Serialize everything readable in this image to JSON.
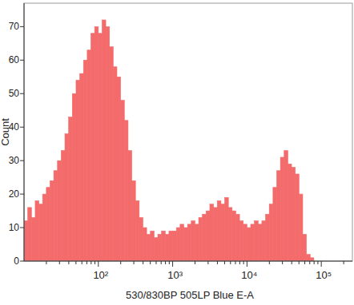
{
  "chart_data": {
    "type": "histogram",
    "x_label": "530/830BP 505LP Blue E-A",
    "y_label": "Count",
    "bins": [
      10,
      11.22,
      12.59,
      14.13,
      15.85,
      17.78,
      19.95,
      22.39,
      25.12,
      28.18,
      31.62,
      35.48,
      39.81,
      44.67,
      50.12,
      56.23,
      63.1,
      70.79,
      79.43,
      89.13,
      100,
      112.2,
      125.9,
      141.3,
      158.5,
      177.8,
      199.5,
      223.9,
      251.2,
      281.8,
      316.2,
      354.8,
      398.1,
      446.7,
      501.2,
      562.3,
      631,
      707.9,
      794.3,
      891.3,
      1000,
      1122,
      1259,
      1413,
      1585,
      1778,
      1995,
      2239,
      2512,
      2818,
      3162,
      3548,
      3981,
      4467,
      5012,
      5623,
      6310,
      7079,
      7943,
      8913,
      10000,
      11220,
      12590,
      14130,
      15850,
      17780,
      19950,
      22390,
      25120,
      28180,
      31620,
      35480,
      39810,
      44670,
      50120,
      56230,
      63100,
      70790,
      79430,
      89130,
      100000
    ],
    "counts": [
      12,
      16,
      13,
      18,
      17,
      20,
      22,
      24,
      27,
      30,
      33,
      38,
      43,
      50,
      54,
      56,
      60,
      63,
      68,
      70,
      68,
      72,
      70,
      64,
      58,
      55,
      48,
      42,
      33,
      24,
      18,
      13,
      10,
      8,
      9,
      7,
      8,
      9,
      8,
      9,
      9,
      10,
      11,
      10,
      11,
      12,
      11,
      13,
      14,
      15,
      17,
      16,
      18,
      17,
      19,
      16,
      15,
      14,
      12,
      11,
      10,
      11,
      12,
      11,
      12,
      14,
      17,
      22,
      27,
      31,
      33,
      29,
      28,
      26,
      20,
      8,
      2,
      1,
      0,
      0
    ],
    "color": "#f46b6b",
    "log": "x",
    "grid": false,
    "xlim": [
      10,
      262144
    ],
    "ylim": [
      0,
      77
    ],
    "xticks": [
      {
        "value": 100,
        "label": "10²"
      },
      {
        "value": 1000,
        "label": "10³"
      },
      {
        "value": 10000,
        "label": "10⁴"
      },
      {
        "value": 100000,
        "label": "10⁵"
      }
    ],
    "yticks": [
      0,
      10,
      20,
      30,
      40,
      50,
      60,
      70
    ]
  }
}
